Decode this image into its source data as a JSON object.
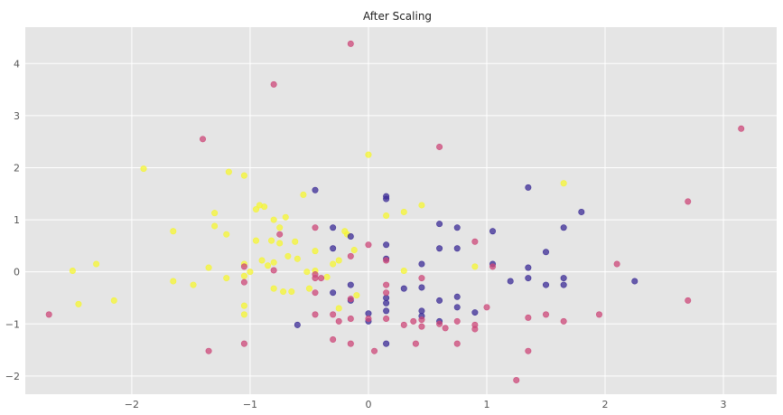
{
  "chart_data": {
    "type": "scatter",
    "title": "After Scaling",
    "xlabel": "",
    "ylabel": "",
    "xlim": [
      -2.9,
      3.45
    ],
    "ylim": [
      -2.35,
      4.7
    ],
    "xticks": [
      -2,
      -1,
      0,
      1,
      2,
      3
    ],
    "yticks": [
      -2,
      -1,
      0,
      1,
      2,
      3,
      4
    ],
    "xtick_labels": [
      "−2",
      "−1",
      "0",
      "1",
      "2",
      "3"
    ],
    "ytick_labels": [
      "−2",
      "−1",
      "0",
      "1",
      "2",
      "3",
      "4"
    ],
    "grid": true,
    "background_color": "#e5e5e5",
    "grid_color": "#ffffff",
    "series": [
      {
        "color": "#f5f531",
        "points": [
          [
            -2.5,
            0.02
          ],
          [
            -2.45,
            -0.62
          ],
          [
            -2.3,
            0.15
          ],
          [
            -2.15,
            -0.55
          ],
          [
            -1.9,
            1.98
          ],
          [
            -1.65,
            0.78
          ],
          [
            -1.65,
            -0.18
          ],
          [
            -1.48,
            -0.25
          ],
          [
            -1.35,
            0.08
          ],
          [
            -1.3,
            1.13
          ],
          [
            -1.3,
            0.88
          ],
          [
            -1.2,
            0.72
          ],
          [
            -1.2,
            -0.12
          ],
          [
            -1.18,
            1.92
          ],
          [
            -1.05,
            1.85
          ],
          [
            -1.05,
            0.15
          ],
          [
            -1.05,
            -0.08
          ],
          [
            -1.05,
            -0.65
          ],
          [
            -1.05,
            -0.82
          ],
          [
            -1.0,
            0.0
          ],
          [
            -0.95,
            1.2
          ],
          [
            -0.95,
            0.6
          ],
          [
            -0.92,
            1.28
          ],
          [
            -0.9,
            0.22
          ],
          [
            -0.88,
            1.25
          ],
          [
            -0.85,
            0.12
          ],
          [
            -0.82,
            0.6
          ],
          [
            -0.8,
            1.0
          ],
          [
            -0.8,
            0.18
          ],
          [
            -0.8,
            -0.32
          ],
          [
            -0.75,
            0.85
          ],
          [
            -0.75,
            0.55
          ],
          [
            -0.72,
            -0.38
          ],
          [
            -0.7,
            1.05
          ],
          [
            -0.68,
            0.3
          ],
          [
            -0.65,
            -0.38
          ],
          [
            -0.62,
            0.58
          ],
          [
            -0.6,
            0.25
          ],
          [
            -0.55,
            1.48
          ],
          [
            -0.52,
            0.0
          ],
          [
            -0.5,
            -0.32
          ],
          [
            -0.45,
            0.4
          ],
          [
            -0.45,
            0.02
          ],
          [
            -0.35,
            -0.1
          ],
          [
            -0.3,
            0.15
          ],
          [
            -0.25,
            0.22
          ],
          [
            -0.2,
            0.78
          ],
          [
            -0.18,
            0.72
          ],
          [
            -0.12,
            0.42
          ],
          [
            0.0,
            2.25
          ],
          [
            0.15,
            1.08
          ],
          [
            0.3,
            1.15
          ],
          [
            0.3,
            0.02
          ],
          [
            0.45,
            1.28
          ],
          [
            0.9,
            0.1
          ],
          [
            1.65,
            1.7
          ],
          [
            -0.25,
            -0.7
          ],
          [
            -0.1,
            -0.45
          ]
        ]
      },
      {
        "color": "#3b2b96",
        "points": [
          [
            -0.6,
            -1.02
          ],
          [
            -0.45,
            1.57
          ],
          [
            -0.3,
            0.85
          ],
          [
            -0.3,
            0.45
          ],
          [
            -0.3,
            -0.4
          ],
          [
            -0.15,
            0.68
          ],
          [
            -0.15,
            -0.25
          ],
          [
            -0.15,
            -0.55
          ],
          [
            0.0,
            -0.8
          ],
          [
            0.0,
            -0.95
          ],
          [
            0.15,
            1.45
          ],
          [
            0.15,
            1.4
          ],
          [
            0.15,
            0.52
          ],
          [
            0.15,
            0.25
          ],
          [
            0.15,
            -0.5
          ],
          [
            0.15,
            -0.6
          ],
          [
            0.15,
            -0.75
          ],
          [
            0.15,
            -1.38
          ],
          [
            0.3,
            -0.32
          ],
          [
            0.45,
            0.15
          ],
          [
            0.45,
            -0.3
          ],
          [
            0.45,
            -0.75
          ],
          [
            0.45,
            -0.85
          ],
          [
            0.6,
            0.92
          ],
          [
            0.6,
            0.45
          ],
          [
            0.6,
            -0.55
          ],
          [
            0.6,
            -0.95
          ],
          [
            0.75,
            0.85
          ],
          [
            0.75,
            0.45
          ],
          [
            0.75,
            -0.48
          ],
          [
            0.75,
            -0.68
          ],
          [
            0.9,
            -0.78
          ],
          [
            1.05,
            0.78
          ],
          [
            1.05,
            0.15
          ],
          [
            1.2,
            -0.18
          ],
          [
            1.35,
            1.62
          ],
          [
            1.35,
            0.08
          ],
          [
            1.35,
            -0.12
          ],
          [
            1.5,
            0.38
          ],
          [
            1.5,
            -0.25
          ],
          [
            1.65,
            0.85
          ],
          [
            1.65,
            -0.12
          ],
          [
            1.65,
            -0.25
          ],
          [
            1.8,
            1.15
          ],
          [
            2.25,
            -0.18
          ]
        ]
      },
      {
        "color": "#cc4778",
        "points": [
          [
            -2.7,
            -0.82
          ],
          [
            -1.4,
            2.55
          ],
          [
            -1.35,
            -1.52
          ],
          [
            -1.05,
            0.1
          ],
          [
            -1.05,
            -0.2
          ],
          [
            -1.05,
            -1.38
          ],
          [
            -0.8,
            3.6
          ],
          [
            -0.8,
            0.03
          ],
          [
            -0.75,
            0.72
          ],
          [
            -0.45,
            0.85
          ],
          [
            -0.45,
            -0.05
          ],
          [
            -0.45,
            -0.12
          ],
          [
            -0.45,
            -0.4
          ],
          [
            -0.45,
            -0.82
          ],
          [
            -0.4,
            -0.12
          ],
          [
            -0.3,
            -0.82
          ],
          [
            -0.3,
            -1.3
          ],
          [
            -0.25,
            -0.95
          ],
          [
            -0.15,
            4.38
          ],
          [
            -0.15,
            0.3
          ],
          [
            -0.15,
            -0.52
          ],
          [
            -0.15,
            -0.9
          ],
          [
            -0.15,
            -1.38
          ],
          [
            0.0,
            0.52
          ],
          [
            0.0,
            -0.9
          ],
          [
            0.05,
            -1.52
          ],
          [
            0.15,
            0.22
          ],
          [
            0.15,
            -0.25
          ],
          [
            0.15,
            -0.4
          ],
          [
            0.15,
            -0.9
          ],
          [
            0.3,
            -1.02
          ],
          [
            0.38,
            -0.95
          ],
          [
            0.4,
            -1.38
          ],
          [
            0.45,
            -0.12
          ],
          [
            0.45,
            -0.92
          ],
          [
            0.45,
            -1.05
          ],
          [
            0.6,
            2.4
          ],
          [
            0.6,
            -1.0
          ],
          [
            0.65,
            -1.08
          ],
          [
            0.75,
            -0.95
          ],
          [
            0.75,
            -1.38
          ],
          [
            0.9,
            0.58
          ],
          [
            0.9,
            -1.02
          ],
          [
            0.9,
            -1.1
          ],
          [
            1.0,
            -0.68
          ],
          [
            1.05,
            0.1
          ],
          [
            1.25,
            -2.08
          ],
          [
            1.35,
            -0.88
          ],
          [
            1.35,
            -1.52
          ],
          [
            1.5,
            -0.82
          ],
          [
            1.65,
            -0.95
          ],
          [
            1.95,
            -0.82
          ],
          [
            2.1,
            0.15
          ],
          [
            2.7,
            1.35
          ],
          [
            2.7,
            -0.55
          ],
          [
            3.15,
            2.75
          ]
        ]
      }
    ]
  }
}
